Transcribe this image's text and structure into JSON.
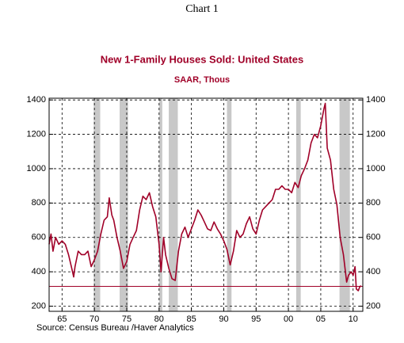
{
  "header": "Chart 1",
  "chart_data": {
    "type": "line",
    "title": "New 1-Family Houses Sold: United States",
    "subtitle": "SAAR, Thous",
    "source": "Source:  Census Bureau /Haver Analytics",
    "color": "#a00028",
    "x": [
      1963.0,
      1963.3,
      1963.6,
      1964.0,
      1964.5,
      1965.0,
      1965.5,
      1966.0,
      1966.5,
      1966.8,
      1967.0,
      1967.5,
      1968.0,
      1968.5,
      1969.0,
      1969.5,
      1970.0,
      1970.5,
      1971.0,
      1971.5,
      1972.0,
      1972.3,
      1972.7,
      1973.0,
      1973.5,
      1974.0,
      1974.5,
      1975.0,
      1975.5,
      1976.0,
      1976.5,
      1977.0,
      1977.5,
      1978.0,
      1978.5,
      1979.0,
      1979.5,
      1980.0,
      1980.3,
      1980.7,
      1981.0,
      1981.5,
      1982.0,
      1982.5,
      1983.0,
      1983.5,
      1984.0,
      1984.5,
      1985.0,
      1985.5,
      1986.0,
      1986.5,
      1987.0,
      1987.5,
      1988.0,
      1988.5,
      1989.0,
      1989.5,
      1990.0,
      1990.5,
      1991.0,
      1991.5,
      1992.0,
      1992.5,
      1993.0,
      1993.5,
      1994.0,
      1994.5,
      1995.0,
      1995.5,
      1996.0,
      1996.5,
      1997.0,
      1997.5,
      1998.0,
      1998.5,
      1999.0,
      1999.5,
      2000.0,
      2000.5,
      2001.0,
      2001.5,
      2002.0,
      2002.5,
      2003.0,
      2003.5,
      2004.0,
      2004.5,
      2005.0,
      2005.5,
      2005.7,
      2006.0,
      2006.5,
      2007.0,
      2007.5,
      2008.0,
      2008.5,
      2009.0,
      2009.3,
      2009.7,
      2010.0,
      2010.3,
      2010.5,
      2010.8,
      2011.0,
      2011.2
    ],
    "values": [
      560,
      620,
      520,
      600,
      560,
      580,
      560,
      500,
      420,
      370,
      430,
      520,
      500,
      500,
      520,
      430,
      470,
      520,
      620,
      700,
      720,
      830,
      730,
      700,
      600,
      520,
      420,
      460,
      560,
      600,
      640,
      760,
      840,
      820,
      860,
      780,
      720,
      560,
      400,
      600,
      500,
      420,
      360,
      350,
      520,
      620,
      660,
      600,
      650,
      700,
      760,
      730,
      690,
      650,
      640,
      690,
      650,
      620,
      580,
      530,
      440,
      520,
      640,
      600,
      620,
      680,
      720,
      650,
      620,
      700,
      760,
      780,
      800,
      820,
      880,
      880,
      900,
      880,
      880,
      860,
      920,
      890,
      960,
      1000,
      1050,
      1150,
      1200,
      1180,
      1250,
      1350,
      1380,
      1120,
      1050,
      880,
      790,
      600,
      500,
      340,
      380,
      400,
      380,
      430,
      300,
      290,
      310,
      320
    ],
    "recessions": [
      [
        1969.9,
        1970.9
      ],
      [
        1973.9,
        1975.2
      ],
      [
        1980.0,
        1980.5
      ],
      [
        1981.5,
        1982.9
      ],
      [
        1990.5,
        1991.2
      ],
      [
        2001.2,
        2001.9
      ],
      [
        2007.9,
        2009.5
      ]
    ],
    "reference_line": 315,
    "xlim": [
      1963,
      2011.5
    ],
    "xticks": [
      {
        "value": 1965,
        "label": "65"
      },
      {
        "value": 1970,
        "label": "70"
      },
      {
        "value": 1975,
        "label": "75"
      },
      {
        "value": 1980,
        "label": "80"
      },
      {
        "value": 1985,
        "label": "85"
      },
      {
        "value": 1990,
        "label": "90"
      },
      {
        "value": 1995,
        "label": "95"
      },
      {
        "value": 2000,
        "label": "00"
      },
      {
        "value": 2005,
        "label": "05"
      },
      {
        "value": 2010,
        "label": "10"
      }
    ],
    "ylim": [
      170,
      1410
    ],
    "yticks": [
      200,
      400,
      600,
      800,
      1000,
      1200,
      1400
    ],
    "y2lim": [
      170,
      1410
    ],
    "y2ticks": [
      200,
      400,
      600,
      800,
      1000,
      1200,
      1400
    ],
    "grid": true
  }
}
